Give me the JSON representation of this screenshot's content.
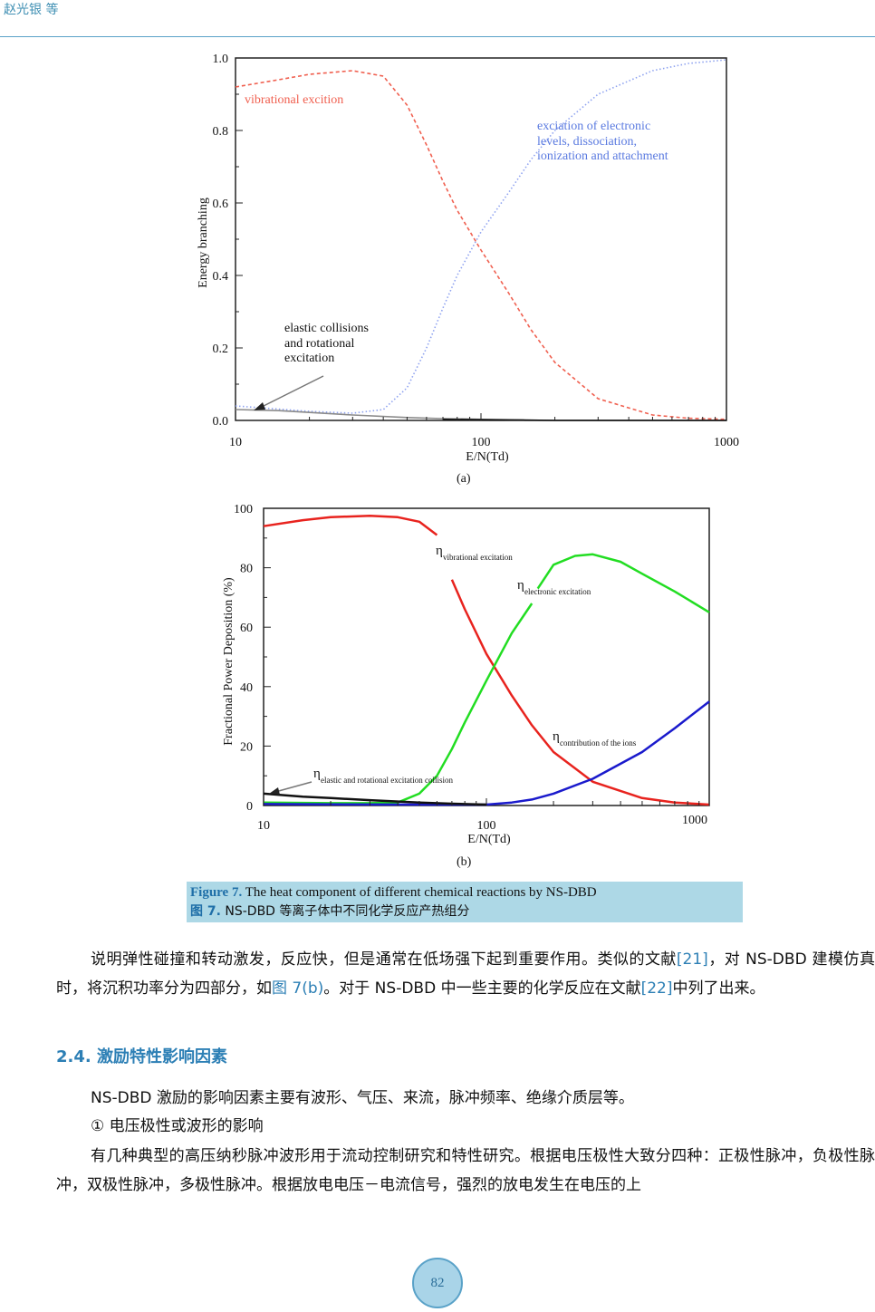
{
  "header": {
    "running_head": "赵光银 等"
  },
  "figure_a": {
    "label": "(a)",
    "chart_data": {
      "type": "line",
      "ylabel": "Energy branching",
      "xlabel": "E/N(Td)",
      "xscale": "log",
      "xlim": [
        10,
        1000
      ],
      "ylim": [
        0,
        1.0
      ],
      "x_ticks": [
        10,
        100,
        1000
      ],
      "y_ticks": [
        "0.0",
        "0.2",
        "0.4",
        "0.6",
        "0.8",
        "1.0"
      ],
      "series": [
        {
          "color": "#f06050",
          "style": "dashed",
          "x": [
            10,
            15,
            20,
            30,
            40,
            50,
            60,
            70,
            80,
            100,
            130,
            160,
            200,
            300,
            500,
            700,
            1000
          ],
          "y": [
            0.92,
            0.94,
            0.955,
            0.965,
            0.95,
            0.87,
            0.76,
            0.66,
            0.58,
            0.47,
            0.35,
            0.25,
            0.16,
            0.06,
            0.015,
            0.006,
            0.003
          ]
        },
        {
          "color": "#8fa3f0",
          "style": "dotted",
          "x": [
            10,
            20,
            30,
            40,
            50,
            60,
            70,
            80,
            100,
            130,
            160,
            200,
            300,
            500,
            700,
            1000
          ],
          "y": [
            0.04,
            0.025,
            0.02,
            0.03,
            0.09,
            0.2,
            0.31,
            0.4,
            0.52,
            0.63,
            0.72,
            0.8,
            0.9,
            0.965,
            0.985,
            0.995
          ]
        },
        {
          "color": "#8a8a8a",
          "style": "solid",
          "x": [
            10,
            15,
            20,
            30,
            50,
            70,
            100,
            150
          ],
          "y": [
            0.03,
            0.027,
            0.022,
            0.015,
            0.008,
            0.005,
            0.003,
            0.001
          ]
        },
        {
          "color": "#111111",
          "style": "solid",
          "x": [
            70,
            100,
            150,
            200,
            300,
            1000
          ],
          "y": [
            0.003,
            0.002,
            0.001,
            0.0,
            0.0,
            0.0
          ]
        }
      ],
      "annotations": {
        "vibrational": "vibrational excition",
        "electronic_1": "exciation of electronic",
        "electronic_2": "levels, dissociation,",
        "electronic_3": "ionization and attachment",
        "elastic_1": "elastic collisions",
        "elastic_2": "and rotational",
        "elastic_3": "excitation"
      }
    }
  },
  "figure_b": {
    "label": "(b)",
    "chart_data": {
      "type": "line",
      "ylabel": "Fractional Power Deposition (%)",
      "xlabel": "E/N(Td)",
      "xscale": "log",
      "xlim": [
        10,
        1000
      ],
      "ylim": [
        0,
        100
      ],
      "x_ticks": [
        10,
        100,
        1000
      ],
      "y_ticks": [
        "0",
        "20",
        "40",
        "60",
        "80",
        "100"
      ],
      "series": [
        {
          "color": "#e8231e",
          "segments": [
            {
              "x": [
                10,
                15,
                20,
                30,
                40,
                50,
                60
              ],
              "y": [
                94,
                96,
                97,
                97.5,
                97,
                95.5,
                91
              ]
            },
            {
              "x": [
                70,
                80,
                100,
                130,
                160,
                200,
                300,
                500,
                700,
                1000
              ],
              "y": [
                76,
                66,
                51,
                37,
                27,
                18,
                8,
                2.5,
                1,
                0.3
              ]
            }
          ]
        },
        {
          "color": "#22dd22",
          "segments": [
            {
              "x": [
                10,
                20,
                30,
                40,
                50,
                60,
                70,
                80,
                100,
                130,
                160
              ],
              "y": [
                1,
                0.8,
                0.8,
                1,
                4,
                10,
                19,
                28,
                42,
                58,
                68
              ]
            },
            {
              "x": [
                170,
                200,
                250,
                300,
                400,
                500,
                700,
                1000
              ],
              "y": [
                73,
                81,
                84,
                84.5,
                82,
                78,
                72,
                65
              ]
            }
          ]
        },
        {
          "color": "#1a1acc",
          "segments": [
            {
              "x": [
                10,
                50,
                100,
                130,
                160,
                200,
                300,
                500,
                700,
                1000
              ],
              "y": [
                0.5,
                0.3,
                0.3,
                1,
                2,
                4,
                9,
                18,
                26,
                35
              ]
            }
          ]
        },
        {
          "color": "#111111",
          "segments": [
            {
              "x": [
                10,
                15,
                20,
                30,
                50,
                70,
                100
              ],
              "y": [
                4,
                3,
                2.5,
                1.8,
                1,
                0.6,
                0.3
              ]
            }
          ]
        }
      ],
      "annotations": {
        "vib_eta": "η",
        "vib_sub": "vibrational excitation",
        "elec_eta": "η",
        "elec_sub": "electronic excitation",
        "ions_eta": "η",
        "ions_sub": "contribution of the ions",
        "elastic_eta": "η",
        "elastic_sub": "elastic and rotational excitation collision"
      }
    }
  },
  "caption": {
    "en_label": "Figure 7.",
    "en_text": " The heat component of different chemical reactions by NS-DBD",
    "zh_label": "图 7.",
    "zh_text": " NS-DBD 等离子体中不同化学反应产热组分"
  },
  "body": {
    "p1_a": "说明弹性碰撞和转动激发，反应快，但是通常在低场强下起到重要作用。类似的文献",
    "p1_ref1": "[21]",
    "p1_b": "，对 NS-DBD 建模仿真时，将沉积功率分为四部分，如",
    "p1_fig": "图 7(b)",
    "p1_c": "。对于 NS-DBD 中一些主要的化学反应在文献",
    "p1_ref2": "[22]",
    "p1_d": "中列了出来。",
    "section": "2.4.  激励特性影响因素",
    "p2": "NS-DBD 激励的影响因素主要有波形、气压、来流，脉冲频率、绝缘介质层等。",
    "p3": "①  电压极性或波形的影响",
    "p4": "有几种典型的高压纳秒脉冲波形用于流动控制研究和特性研究。根据电压极性大致分四种：正极性脉冲，负极性脉冲，双极性脉冲，多极性脉冲。根据放电电压－电流信号，强烈的放电发生在电压的上"
  },
  "footer": {
    "page_number": "82"
  }
}
